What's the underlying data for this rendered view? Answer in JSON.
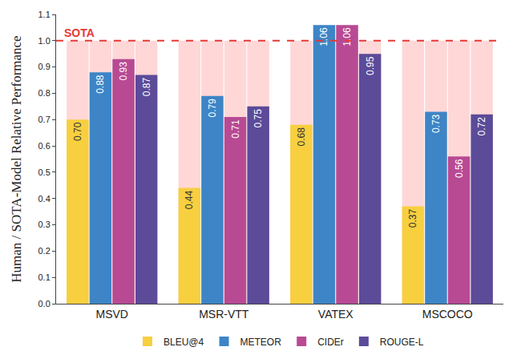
{
  "chart_data": {
    "type": "bar",
    "y_label": "Human / SOTA-Model Relative Performance",
    "categories": [
      "MSVD",
      "MSR-VTT",
      "VATEX",
      "MSCOCO"
    ],
    "series": [
      {
        "name": "BLEU@4",
        "color": "#f7cf3f",
        "values": [
          0.7,
          0.44,
          0.68,
          0.37
        ],
        "value_labels": [
          "0.70",
          "0.44",
          "0.68",
          "0.37"
        ]
      },
      {
        "name": "METEOR",
        "color": "#3d85c6",
        "values": [
          0.88,
          0.79,
          1.06,
          0.73
        ],
        "value_labels": [
          "0.88",
          "0.79",
          "1.06",
          "0.73"
        ]
      },
      {
        "name": "CIDEr",
        "color": "#b84a94",
        "values": [
          0.93,
          0.71,
          1.06,
          0.56
        ],
        "value_labels": [
          "0.93",
          "0.71",
          "1.06",
          "0.56"
        ]
      },
      {
        "name": "ROUGE-L",
        "color": "#5b4b99",
        "values": [
          0.87,
          0.75,
          0.95,
          0.72
        ],
        "value_labels": [
          "0.87",
          "0.75",
          "0.95",
          "0.72"
        ]
      }
    ],
    "reference_line": {
      "value": 1.0,
      "label": "SOTA",
      "color": "#e53935"
    },
    "ylim": [
      0,
      1.1
    ],
    "yticks": [
      {
        "value": 0,
        "label": "0.0"
      },
      0.1,
      0.2,
      0.3,
      0.4,
      0.5,
      0.6,
      0.7,
      0.8,
      0.9,
      {
        "value": 1,
        "label": "1.0"
      },
      1.1
    ],
    "grid": false,
    "legend": "bottom",
    "data_labels": true
  }
}
